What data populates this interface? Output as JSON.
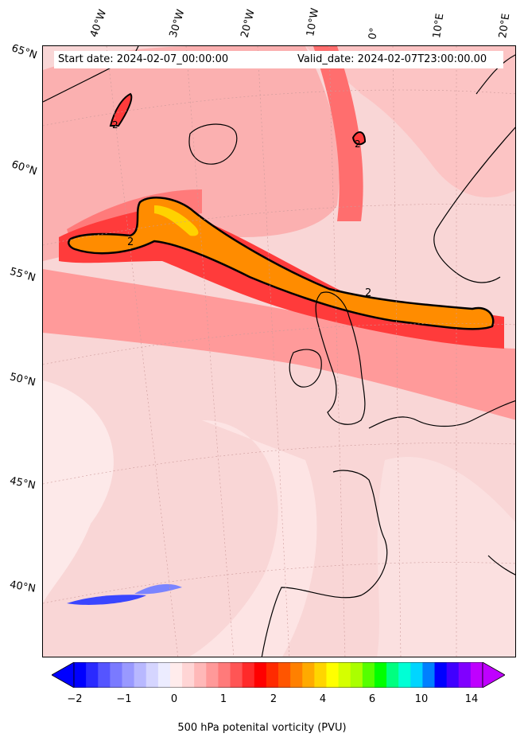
{
  "header": {
    "start_date": "Start date: 2024-02-07_00:00:00",
    "valid_date": "Valid_date: 2024-02-07T23:00:00.00"
  },
  "lon_labels": [
    "40°W",
    "30°W",
    "20°W",
    "10°W",
    "0°",
    "10°E",
    "20°E"
  ],
  "lat_labels": [
    "65°N",
    "60°N",
    "55°N",
    "50°N",
    "45°N",
    "40°N"
  ],
  "contour_labels": [
    "2",
    "2",
    "2",
    "2"
  ],
  "colorbar": {
    "ticks": [
      "−2",
      "−1",
      "0",
      "1",
      "2",
      "4",
      "6",
      "10",
      "14"
    ],
    "title": "500 hPa potenital vorticity (PVU)",
    "colors": [
      "#0000ff",
      "#2a2aff",
      "#5555ff",
      "#7a7aff",
      "#9999ff",
      "#b8b8ff",
      "#d5d5ff",
      "#ececff",
      "#ffecec",
      "#ffd5d5",
      "#ffb8b8",
      "#ff9999",
      "#ff7a7a",
      "#ff5555",
      "#ff2a2a",
      "#ff0000",
      "#ff2a00",
      "#ff5500",
      "#ff8000",
      "#ffaa00",
      "#ffd500",
      "#ffff00",
      "#d5ff00",
      "#aaff00",
      "#55ff00",
      "#00ff00",
      "#00ff80",
      "#00ffd5",
      "#00d5ff",
      "#0080ff",
      "#0000ff",
      "#4000ff",
      "#8000ff",
      "#bf00ff"
    ],
    "under_color": "#0000ff",
    "over_color": "#bf00ff"
  },
  "colors": {
    "background_pv": "#f9d6d6",
    "strong_pv": "#ff3b3b",
    "streamer_core": "#ff8c00",
    "streamer_peak": "#ffd200",
    "negative_pv": "#3a46ff",
    "coastline": "#000000"
  }
}
